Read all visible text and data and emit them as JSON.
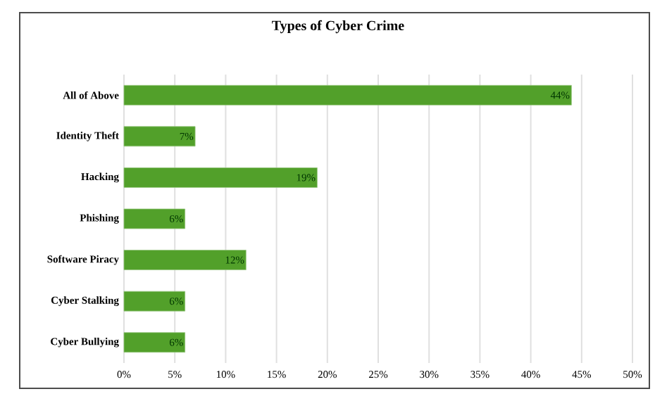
{
  "chart_data": {
    "type": "bar",
    "orientation": "horizontal",
    "title": "Types of Cyber Crime",
    "categories": [
      "All of Above",
      "Identity Theft",
      "Hacking",
      "Phishing",
      "Software Piracy",
      "Cyber Stalking",
      "Cyber Bullying"
    ],
    "values": [
      44,
      7,
      19,
      6,
      12,
      6,
      6
    ],
    "value_labels": [
      "44%",
      "7%",
      "19%",
      "6%",
      "12%",
      "6%",
      "6%"
    ],
    "color": "#52a02a",
    "xlim": [
      0,
      50
    ],
    "xticks": [
      {
        "value": 0,
        "label": "0%"
      },
      {
        "value": 5,
        "label": "5%"
      },
      {
        "value": 10,
        "label": "10%"
      },
      {
        "value": 15,
        "label": "15%"
      },
      {
        "value": 20,
        "label": "20%"
      },
      {
        "value": 25,
        "label": "25%"
      },
      {
        "value": 30,
        "label": "30%"
      },
      {
        "value": 35,
        "label": "35%"
      },
      {
        "value": 40,
        "label": "40%"
      },
      {
        "value": 45,
        "label": "45%"
      },
      {
        "value": 50,
        "label": "50%"
      }
    ],
    "grid": "x"
  }
}
